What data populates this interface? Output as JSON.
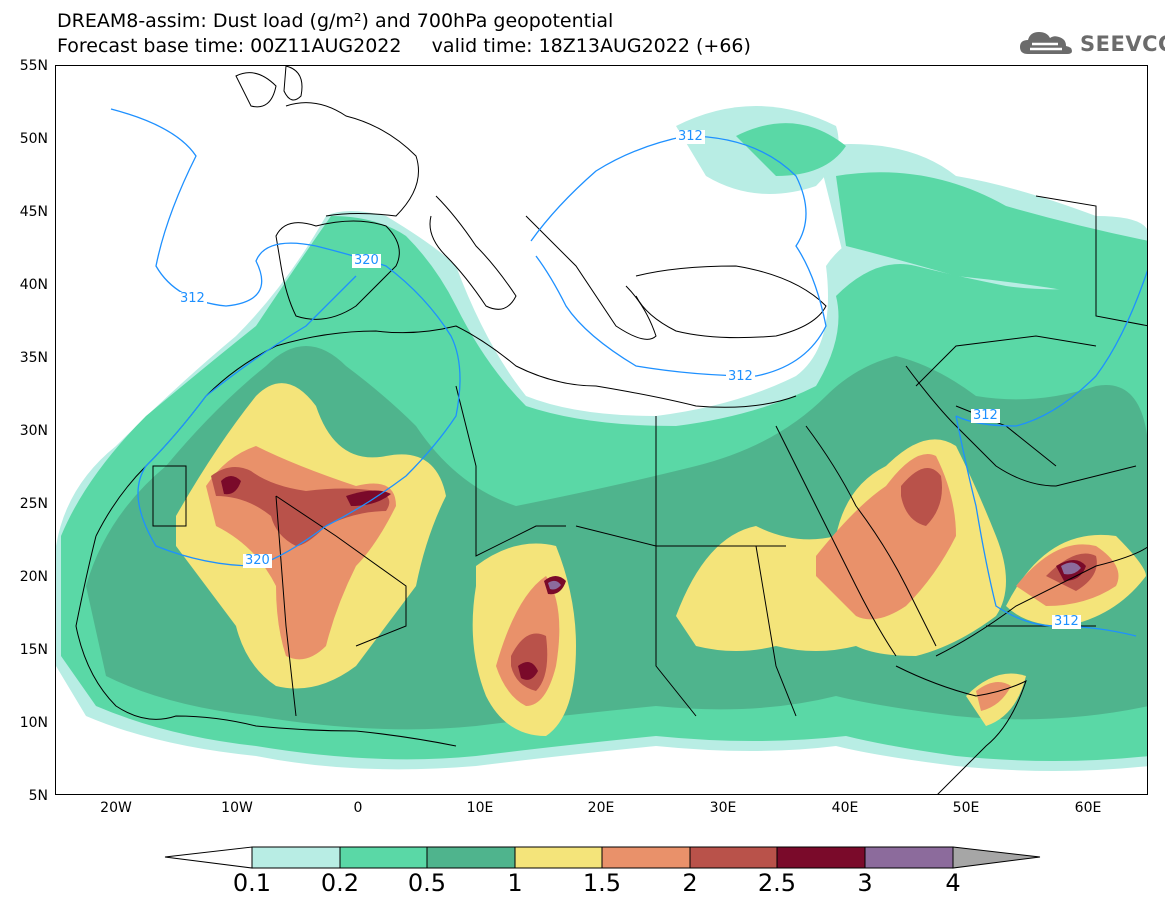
{
  "header": {
    "line1": "DREAM8-assim: Dust load (g/m²) and 700hPa geopotential",
    "line2": "Forecast base time: 00Z11AUG2022     valid time: 18Z13AUG2022 (+66)"
  },
  "logo": {
    "text": "SEEVCCC",
    "icon": "cloud-logo-icon"
  },
  "map": {
    "lat_labels": [
      "55N",
      "50N",
      "45N",
      "40N",
      "35N",
      "30N",
      "25N",
      "20N",
      "15N",
      "10N",
      "5N"
    ],
    "lon_labels": [
      "20W",
      "10W",
      "0",
      "10E",
      "20E",
      "30E",
      "40E",
      "50E",
      "60E"
    ],
    "contour_labels": [
      "312",
      "320",
      "312",
      "312",
      "312",
      "320",
      "312"
    ],
    "colors": {
      "land_border": "#000000",
      "contour": "#1e90ff"
    }
  },
  "colorbar": {
    "labels": [
      "0.1",
      "0.2",
      "0.5",
      "1",
      "1.5",
      "2",
      "2.5",
      "3",
      "4"
    ],
    "colors": [
      "#ffffff",
      "#b8ede4",
      "#5ad8a6",
      "#4fb48d",
      "#f4e47a",
      "#e9916a",
      "#b9524a",
      "#7a0a2a",
      "#8c6b9c",
      "#a6a6a6"
    ]
  }
}
